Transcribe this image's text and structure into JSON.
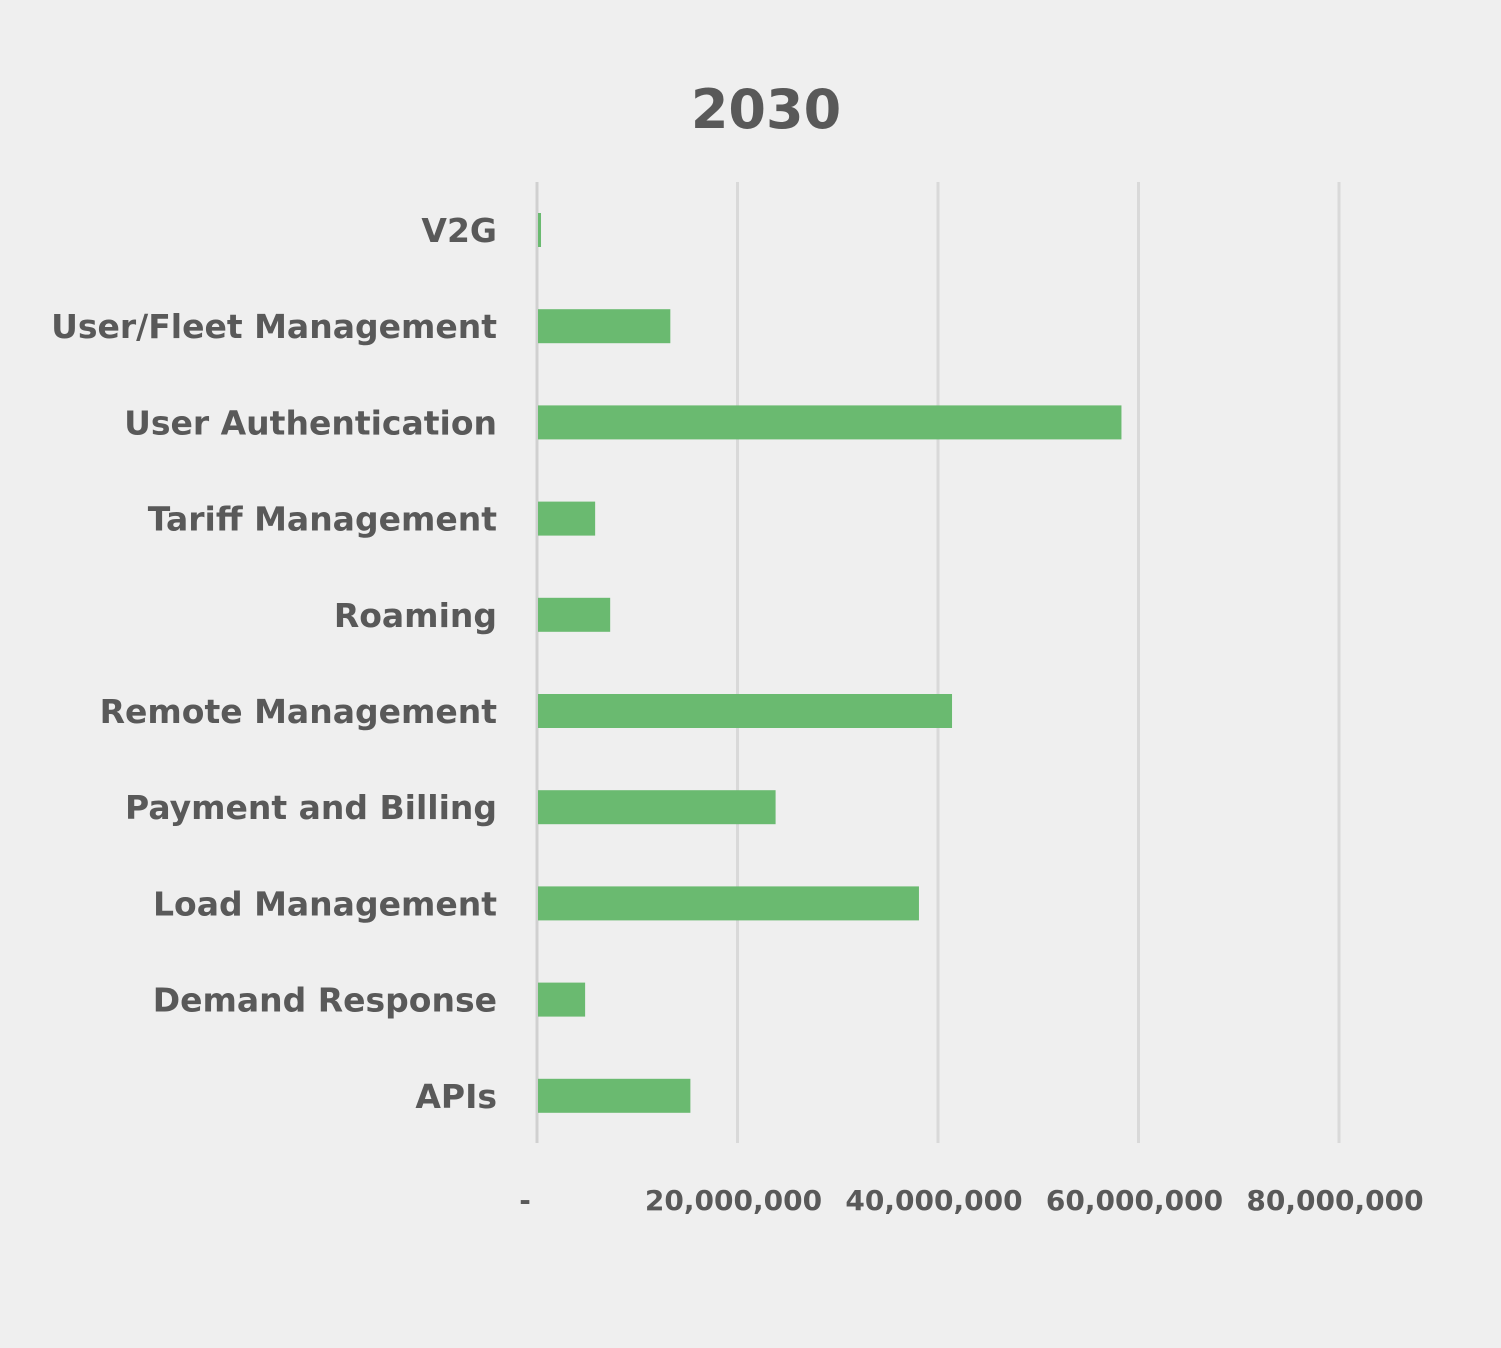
{
  "chart_data": {
    "type": "bar",
    "orientation": "horizontal",
    "title": "2030",
    "xlabel": "",
    "ylabel": "",
    "categories": [
      "V2G",
      "User/Fleet Management",
      "User Authentication",
      "Tariff Management",
      "Roaming",
      "Remote Management",
      "Payment and Billing",
      "Load Management",
      "Demand Response",
      "APIs"
    ],
    "values": [
      300000,
      13200000,
      58200000,
      5700000,
      7200000,
      41300000,
      23700000,
      38000000,
      4700000,
      15200000
    ],
    "xlim": [
      0,
      80000000
    ],
    "x_ticks": [
      0,
      20000000,
      40000000,
      60000000,
      80000000
    ],
    "x_tick_labels": [
      "-",
      "20,000,000",
      "40,000,000",
      "60,000,000",
      "80,000,000"
    ],
    "grid": "vertical",
    "legend": "none",
    "bar_color": "#6aba70",
    "text_color": "#595959",
    "background_color": "#efefef"
  }
}
